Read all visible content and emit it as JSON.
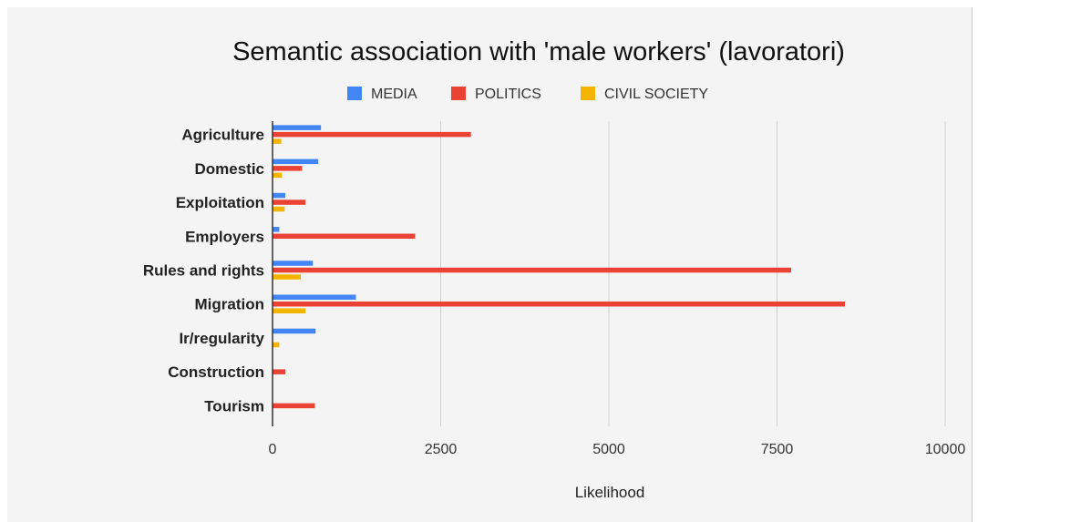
{
  "chart_data": {
    "type": "bar",
    "orientation": "horizontal",
    "title": "Semantic association with 'male workers' (lavoratori)",
    "xlabel": "Likelihood",
    "ylabel": "",
    "xlim": [
      0,
      10000
    ],
    "xticks": [
      "0",
      "2500",
      "5000",
      "7500",
      "10000"
    ],
    "grid": true,
    "legend_position": "top",
    "categories": [
      "Agriculture",
      "Domestic",
      "Exploitation",
      "Employers",
      "Rules and rights",
      "Migration",
      "Ir/regularity",
      "Construction",
      "Tourism"
    ],
    "series": [
      {
        "name": "MEDIA",
        "color": "#4285f4",
        "values": [
          720,
          680,
          190,
          100,
          600,
          1240,
          640,
          0,
          0
        ]
      },
      {
        "name": "POLITICS",
        "color": "#ea4335",
        "values": [
          2950,
          440,
          490,
          2120,
          7710,
          8510,
          0,
          190,
          630
        ]
      },
      {
        "name": "CIVIL SOCIETY",
        "color": "#f4b400",
        "values": [
          130,
          140,
          180,
          0,
          420,
          490,
          100,
          0,
          0
        ]
      }
    ]
  }
}
